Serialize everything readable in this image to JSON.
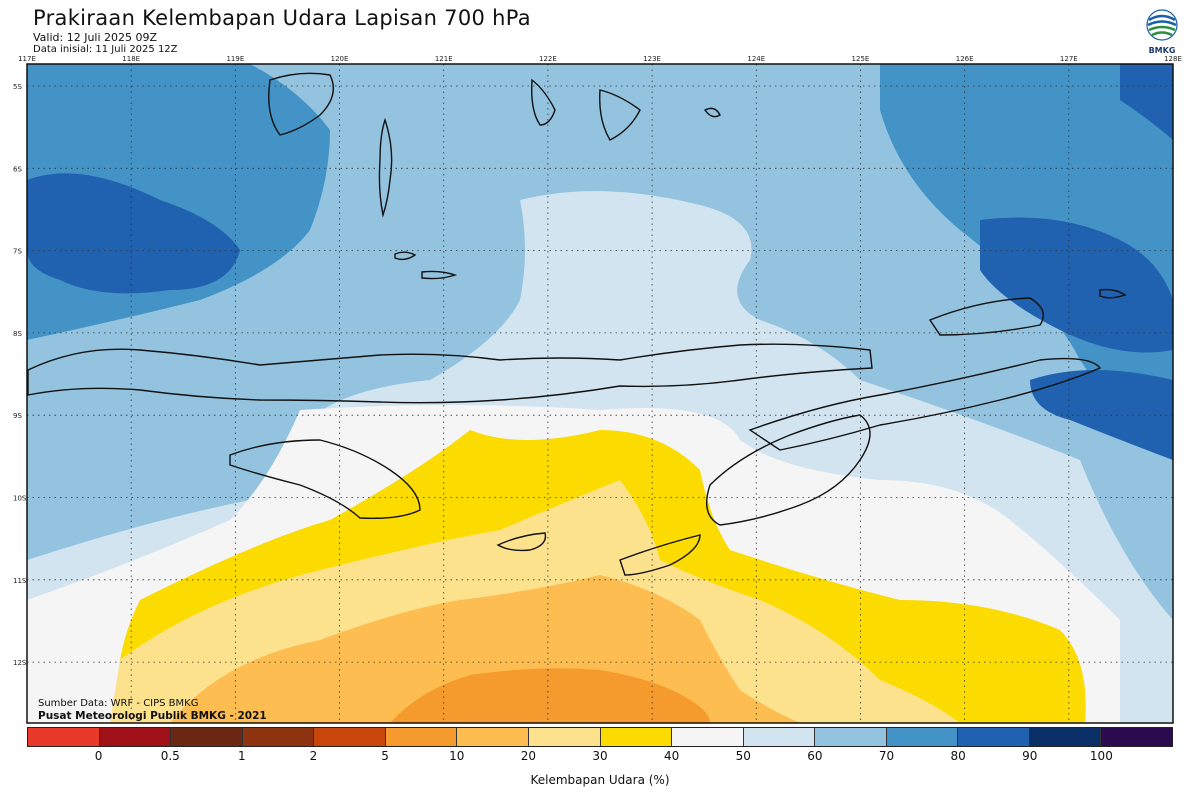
{
  "header": {
    "title": "Prakiraan Kelembapan Udara Lapisan 700 hPa",
    "valid": "Valid: 12 Juli 2025 09Z",
    "initial": "Data inisial: 11 Juli 2025 12Z"
  },
  "logo": {
    "text": "BMKG",
    "icon": "bmkg-logo-icon"
  },
  "map": {
    "lon_labels": [
      "117E",
      "118E",
      "119E",
      "120E",
      "121E",
      "122E",
      "123E",
      "124E",
      "125E",
      "126E",
      "127E",
      "128E"
    ],
    "lat_labels": [
      "5S",
      "6S",
      "7S",
      "8S",
      "9S",
      "10S",
      "11S",
      "12S"
    ]
  },
  "credits": {
    "source": "Sumber Data: WRF - CIPS BMKG",
    "center": "Pusat Meteorologi Publik BMKG - 2021"
  },
  "colorbar": {
    "colors": [
      "#e8392b",
      "#a01018",
      "#6a2812",
      "#8e3410",
      "#c8480c",
      "#f59a2c",
      "#fdbd50",
      "#fde28e",
      "#fbdb00",
      "#f5f5f5",
      "#d1e4f0",
      "#93c3df",
      "#4493c6",
      "#2061b0",
      "#0a2f66",
      "#2c0a50"
    ],
    "ticks": [
      "0",
      "0.5",
      "1",
      "2",
      "5",
      "10",
      "20",
      "30",
      "40",
      "50",
      "60",
      "70",
      "80",
      "90",
      "100"
    ],
    "title": "Kelembapan Udara (%)"
  }
}
